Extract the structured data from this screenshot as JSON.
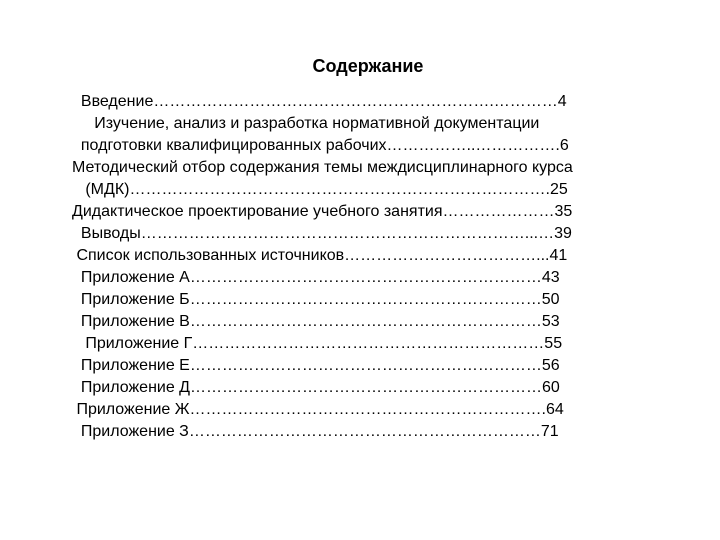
{
  "document": {
    "title": "Содержание",
    "title_fontsize": 18,
    "title_weight": "bold",
    "body_fontsize": 16,
    "line_height": 22,
    "text_color": "#000000",
    "background_color": "#ffffff",
    "entries": [
      {
        "label": "  Введение",
        "leader": "……………………………………………………….",
        "tail": "…………",
        "page": "4"
      },
      {
        "label": "     Изучение, анализ и разработка нормативной документации",
        "leader": "",
        "tail": "",
        "page": ""
      },
      {
        "label": "  подготовки квалифицированных рабочих",
        "leader": "……………..",
        "tail": "…………….",
        "page": "6"
      },
      {
        "label": "Методический отбор содержания темы междисциплинарного курса",
        "leader": "",
        "tail": "",
        "page": ""
      },
      {
        "label": "   (МДК)",
        "leader": "…………………………………………………………………….",
        "tail": "",
        "page": "25"
      },
      {
        "label": "Дидактическое проектирование учебного занятия",
        "leader": "…………………",
        "tail": "",
        "page": "35"
      },
      {
        "label": "  Выводы",
        "leader": "………………………………………………………………",
        "tail": "...…",
        "page": "39"
      },
      {
        "label": " Список использованных источников",
        "leader": "………………………………",
        "tail": "...",
        "page": "41"
      },
      {
        "label": "  Приложение А",
        "leader": "…………………………………………………………",
        "tail": "",
        "page": "43"
      },
      {
        "label": "  Приложение Б",
        "leader": "…………………………………………………………",
        "tail": "",
        "page": "50"
      },
      {
        "label": "  Приложение В",
        "leader": "…………………………………………………………",
        "tail": "",
        "page": "53"
      },
      {
        "label": "   Приложение Г",
        "leader": "…………………………………………………………",
        "tail": "",
        "page": "55"
      },
      {
        "label": "  Приложение Е",
        "leader": "…………………………………………………………",
        "tail": "",
        "page": "56"
      },
      {
        "label": "  Приложение Д",
        "leader": "…………………………………………………………",
        "tail": "",
        "page": "60"
      },
      {
        "label": " Приложение Ж",
        "leader": "………………………………………………………….",
        "tail": "",
        "page": "64"
      },
      {
        "label": "  Приложение З",
        "leader": "…………………………………………………………",
        "tail": "",
        "page": "71"
      }
    ]
  }
}
